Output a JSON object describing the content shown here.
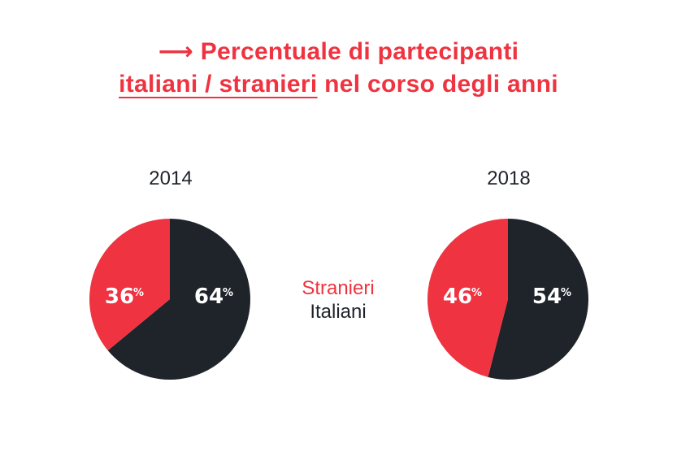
{
  "title": {
    "arrow": "⟶",
    "line1": "Percentuale di partecipanti",
    "line2_underlined": "italiani / stranieri",
    "line2_rest": " nel corso degli anni"
  },
  "legend": {
    "foreign_label": "Stranieri",
    "italian_label": "Italiani"
  },
  "colors": {
    "foreign": "#ef3340",
    "italian": "#1f242b"
  },
  "chart_data": [
    {
      "type": "pie",
      "title": "2014",
      "labels": [
        "Stranieri",
        "Italiani"
      ],
      "values": [
        36,
        64
      ],
      "value_labels": [
        "36",
        "64"
      ],
      "unit": "%"
    },
    {
      "type": "pie",
      "title": "2018",
      "labels": [
        "Stranieri",
        "Italiani"
      ],
      "values": [
        46,
        54
      ],
      "value_labels": [
        "46",
        "54"
      ],
      "unit": "%"
    }
  ]
}
